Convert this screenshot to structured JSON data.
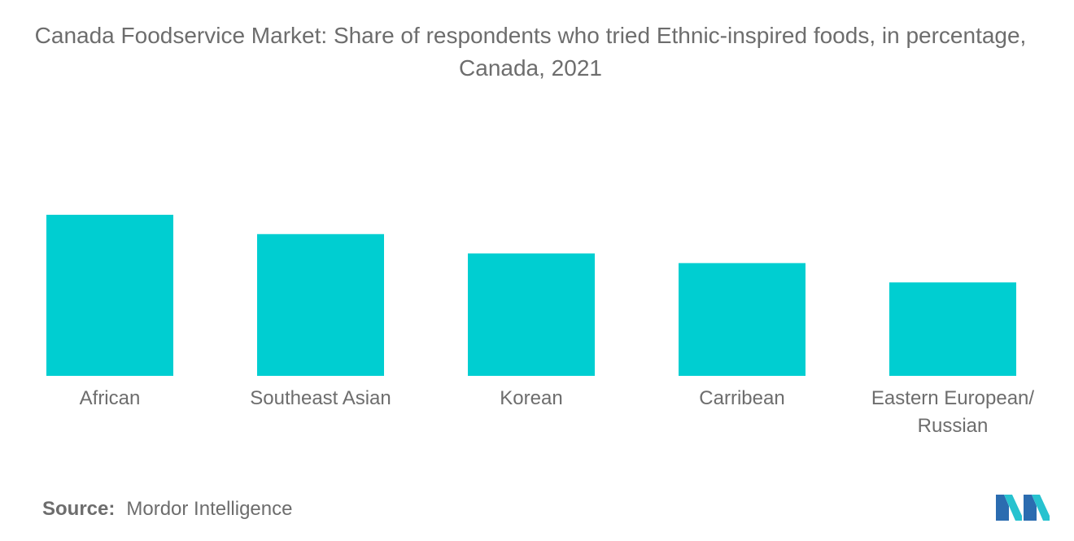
{
  "chart_data": {
    "type": "bar",
    "title": "Canada Foodservice Market: Share of respondents who tried Ethnic-inspired foods, in percentage, Canada, 2021",
    "categories": [
      [
        "African"
      ],
      [
        "Southeast Asian"
      ],
      [
        "Korean"
      ],
      [
        "Carribean"
      ],
      [
        "Eastern European/",
        "Russian"
      ]
    ],
    "values": [
      100,
      88,
      76,
      70,
      58
    ],
    "ylim": [
      0,
      100
    ],
    "grid": false,
    "legend": "none",
    "bar_color": "#00ced1",
    "text_color": "#6d6d6d"
  },
  "source": {
    "label": "Source:",
    "value": "Mordor Intelligence"
  },
  "logo": {
    "icon": "mordor-intelligence-logo",
    "colors": [
      "#2b6cb0",
      "#27c2cf"
    ]
  }
}
